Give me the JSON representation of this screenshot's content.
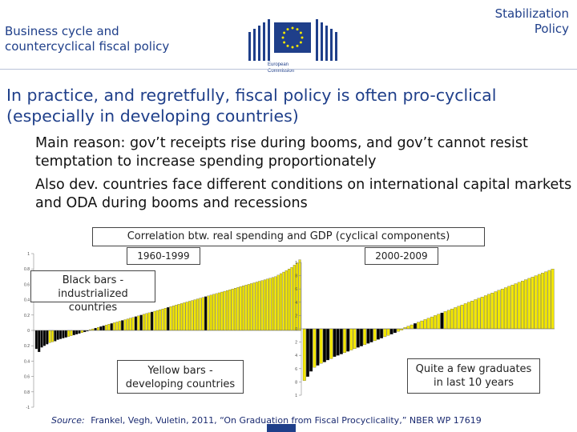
{
  "header": {
    "left_line1": "Business cycle and",
    "left_line2": "countercyclical fiscal policy",
    "right_line1": "Stabilization",
    "right_line2": "Policy"
  },
  "logo": {
    "icon": "european-commission-logo",
    "line1": "European",
    "line2": "Commission"
  },
  "title": "In practice, and regretfully, fiscal policy is often pro-cyclical (especially in developing countries)",
  "bullets": [
    "Main reason: gov’t receipts rise during booms, and gov’t cannot resist temptation to increase spending proportionately",
    "Also dev. countries face different conditions on international capital markets and ODA during booms and recessions"
  ],
  "figure": {
    "caption": "Correlation btw. real spending and GDP (cyclical components)",
    "label_left": "1960-1999",
    "label_right": "2000-2009",
    "note_black": "Black bars - industrialized countries",
    "note_yellow": "Yellow bars - developing countries",
    "note_graduates": "Quite a few graduates in last 10 years",
    "colors": {
      "developing": "#f2e600",
      "industrialized": "#000000"
    }
  },
  "chart_data": [
    {
      "type": "bar",
      "xlabel": "",
      "ylabel": "",
      "ylim": [
        -1,
        1
      ],
      "yticks": [
        -1,
        -0.8,
        -0.6,
        -0.4,
        -0.2,
        0,
        0.2,
        0.4,
        0.6,
        0.8,
        1
      ],
      "values": [
        -0.24,
        -0.28,
        -0.22,
        -0.2,
        -0.18,
        -0.16,
        -0.15,
        -0.14,
        -0.12,
        -0.11,
        -0.1,
        -0.09,
        -0.08,
        -0.07,
        -0.06,
        -0.05,
        -0.04,
        -0.03,
        -0.02,
        -0.01,
        0.01,
        0.02,
        0.03,
        0.04,
        0.05,
        0.06,
        0.07,
        0.08,
        0.09,
        0.1,
        0.11,
        0.12,
        0.13,
        0.14,
        0.15,
        0.16,
        0.17,
        0.18,
        0.19,
        0.2,
        0.21,
        0.22,
        0.23,
        0.24,
        0.25,
        0.26,
        0.27,
        0.28,
        0.29,
        0.3,
        0.31,
        0.32,
        0.33,
        0.34,
        0.35,
        0.36,
        0.37,
        0.38,
        0.39,
        0.4,
        0.41,
        0.42,
        0.43,
        0.44,
        0.45,
        0.46,
        0.47,
        0.48,
        0.49,
        0.5,
        0.51,
        0.52,
        0.53,
        0.54,
        0.55,
        0.56,
        0.57,
        0.58,
        0.59,
        0.6,
        0.61,
        0.62,
        0.63,
        0.64,
        0.65,
        0.66,
        0.67,
        0.68,
        0.69,
        0.7,
        0.72,
        0.74,
        0.76,
        0.78,
        0.8,
        0.82,
        0.85,
        0.88,
        0.92
      ],
      "colors": "kkkkkyykkkkkyykkkykkyykykkyykyyykyyyykykyyykyyyyykyyyyyyyyyyyyykyyyyyyyyyyyyyyyyyyyyyyyyyyyyyyyyy"
    },
    {
      "type": "bar",
      "xlabel": "",
      "ylabel": "",
      "ylim": [
        -1,
        1
      ],
      "yticks": [
        -1,
        -0.8,
        -0.6,
        -0.4,
        -0.2,
        0,
        0.2,
        0.4,
        0.6,
        0.8,
        1
      ],
      "values": [
        -0.78,
        -0.72,
        -0.64,
        -0.58,
        -0.55,
        -0.52,
        -0.5,
        -0.47,
        -0.45,
        -0.42,
        -0.4,
        -0.38,
        -0.36,
        -0.34,
        -0.32,
        -0.3,
        -0.28,
        -0.26,
        -0.24,
        -0.22,
        -0.2,
        -0.18,
        -0.16,
        -0.14,
        -0.12,
        -0.1,
        -0.08,
        -0.06,
        -0.04,
        -0.02,
        0.02,
        0.04,
        0.06,
        0.08,
        0.1,
        0.12,
        0.14,
        0.16,
        0.18,
        0.2,
        0.22,
        0.24,
        0.26,
        0.28,
        0.3,
        0.32,
        0.34,
        0.36,
        0.38,
        0.4,
        0.42,
        0.44,
        0.46,
        0.48,
        0.5,
        0.52,
        0.54,
        0.56,
        0.58,
        0.6,
        0.62,
        0.64,
        0.66,
        0.68,
        0.7,
        0.72,
        0.74,
        0.76,
        0.78,
        0.8,
        0.82,
        0.84,
        0.86,
        0.88,
        0.9
      ],
      "colors": "ykkykykkykkkykyykkykkykkyykkyyyyykyyyyyyykyyyyyyyyyyyyyyyyyyyyyyyyyyyyyyyyy"
    }
  ]
}
